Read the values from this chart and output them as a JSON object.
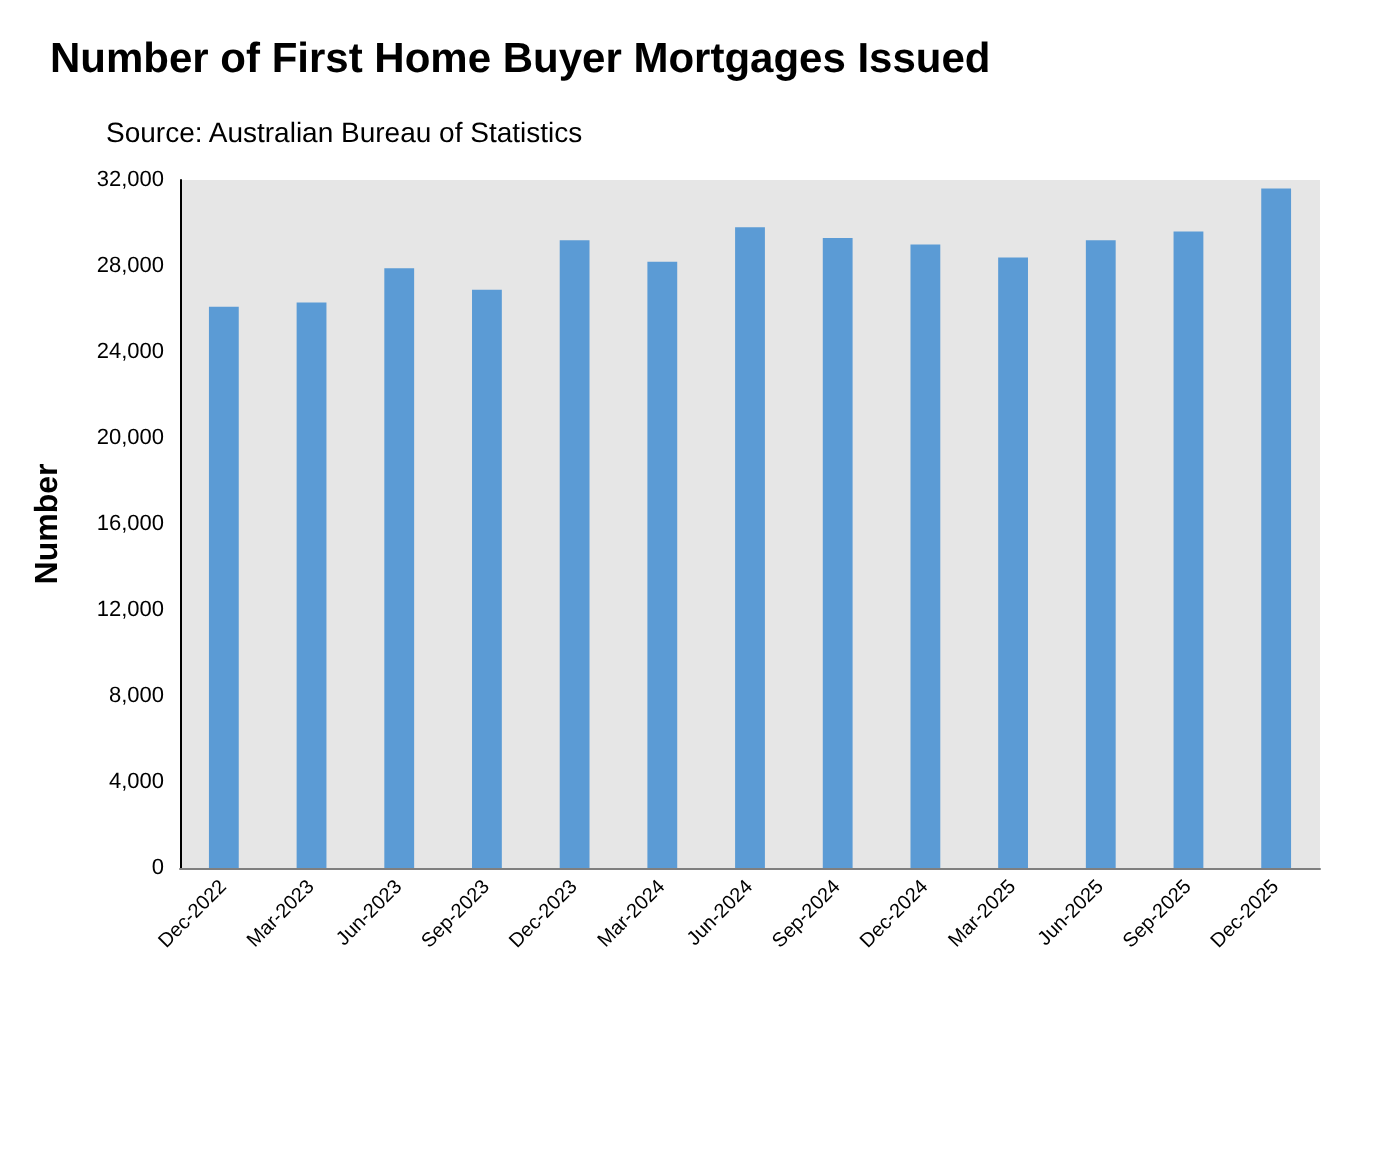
{
  "chart_data": {
    "type": "bar",
    "title": "Number of First Home Buyer Mortgages Issued",
    "subtitle": "Source: Australian Bureau of Statistics",
    "ylabel": "Number",
    "categories": [
      "Dec-2022",
      "Mar-2023",
      "Jun-2023",
      "Sep-2023",
      "Dec-2023",
      "Mar-2024",
      "Jun-2024",
      "Sep-2024",
      "Dec-2024",
      "Mar-2025",
      "Jun-2025",
      "Sep-2025",
      "Dec-2025"
    ],
    "values": [
      26100,
      26300,
      27900,
      26900,
      29200,
      28200,
      29800,
      29300,
      29000,
      28400,
      29200,
      29600,
      31600
    ],
    "color": "#5b9bd5",
    "ylim": [
      0,
      32000
    ],
    "yticks": [
      {
        "value": 0,
        "label": "0"
      },
      {
        "value": 4000,
        "label": "4,000"
      },
      {
        "value": 8000,
        "label": "8,000"
      },
      {
        "value": 12000,
        "label": "12,000"
      },
      {
        "value": 16000,
        "label": "16,000"
      },
      {
        "value": 20000,
        "label": "20,000"
      },
      {
        "value": 24000,
        "label": "24,000"
      },
      {
        "value": 28000,
        "label": "28,000"
      },
      {
        "value": 32000,
        "label": "32,000"
      }
    ],
    "grid": false
  }
}
